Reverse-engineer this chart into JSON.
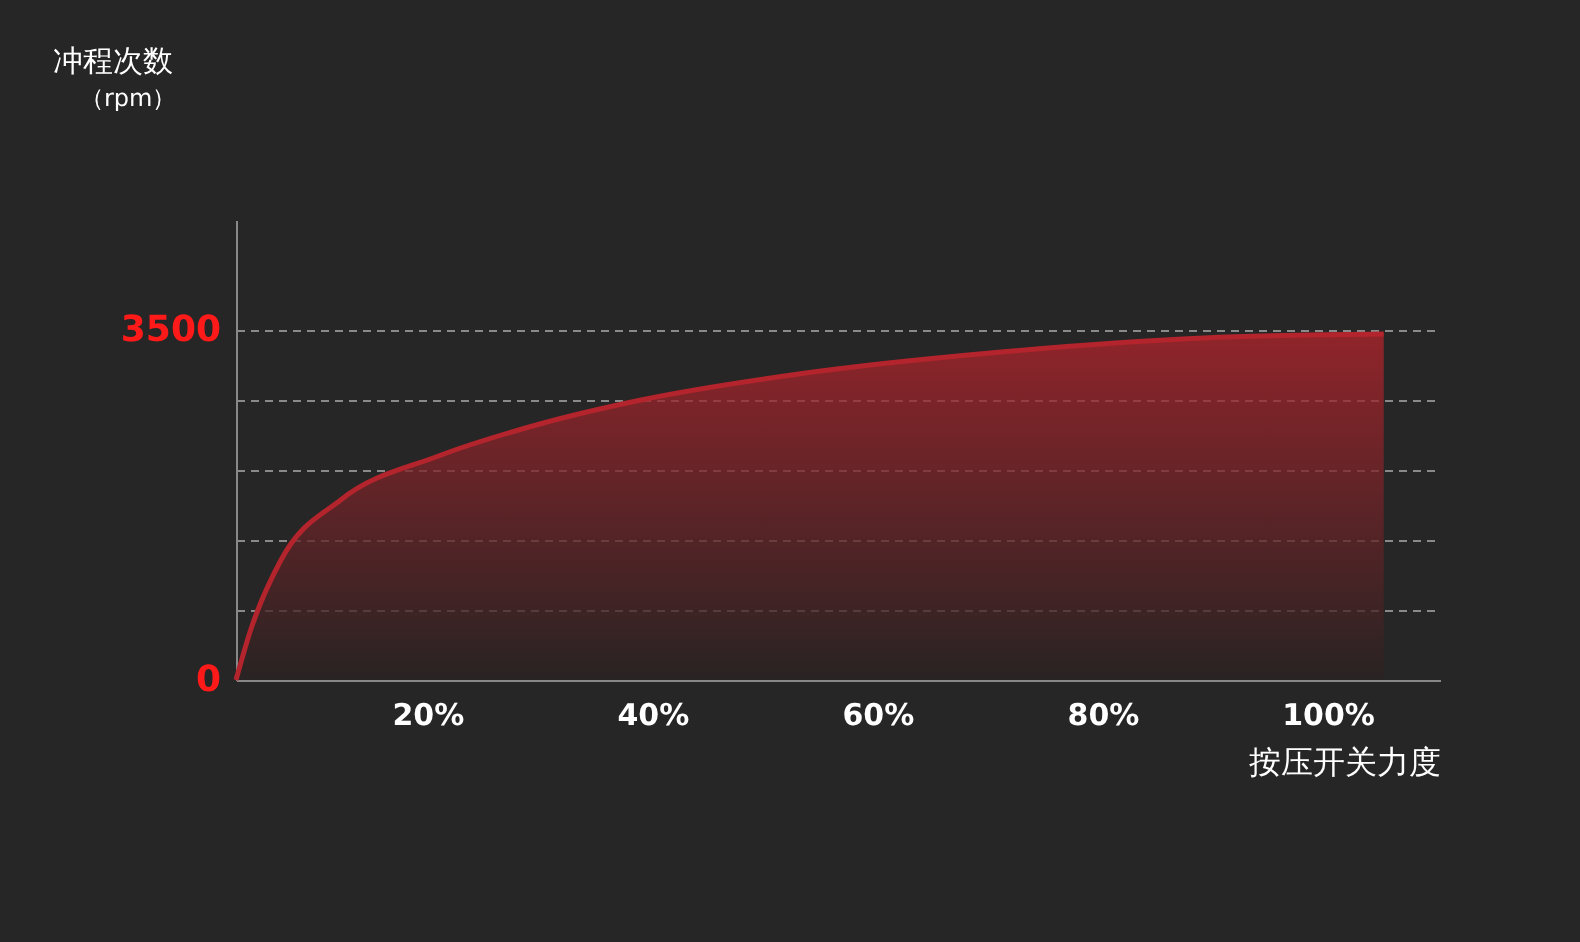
{
  "chart_data": {
    "type": "area",
    "ylabel": "冲程次数",
    "annotations": [
      "（rpm）"
    ],
    "xlabel": "按压开关力度",
    "x": [
      3,
      4.3,
      7,
      12.3,
      21,
      30,
      39,
      53,
      71,
      89,
      105
    ],
    "series": [
      {
        "color": "#b3242c",
        "values": [
          0,
          500,
          1200,
          1800,
          2240,
          2560,
          2800,
          3060,
          3280,
          3420,
          3460
        ]
      }
    ],
    "xlim": [
      3,
      110
    ],
    "xticks": [
      {
        "value": 20,
        "label": "20%"
      },
      {
        "value": 40,
        "label": "40%"
      },
      {
        "value": 60,
        "label": "60%"
      },
      {
        "value": 80,
        "label": "80%"
      },
      {
        "value": 100,
        "label": "100%"
      }
    ],
    "ylim": [
      0,
      4600
    ],
    "yticks": [
      0,
      {
        "value": 700,
        "label": null
      },
      {
        "value": 1400,
        "label": null
      },
      {
        "value": 2100,
        "label": null
      },
      {
        "value": 2800,
        "label": null
      },
      3500
    ],
    "grid": "y"
  }
}
